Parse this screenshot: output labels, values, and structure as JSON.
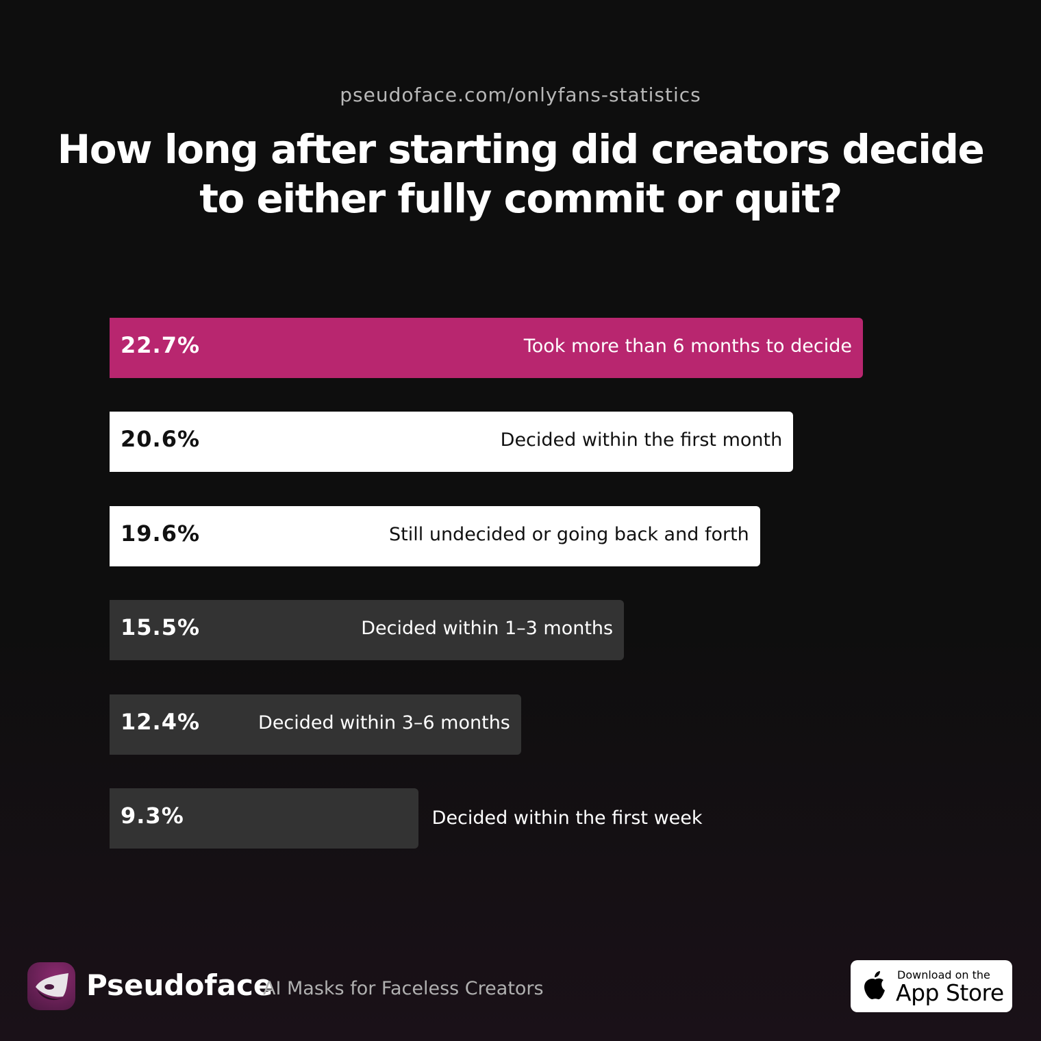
{
  "header": {
    "source": "pseudoface.com/onlyfans-statistics"
  },
  "chart_data": {
    "type": "bar",
    "orientation": "horizontal",
    "title": "How long after starting did creators decide to either fully commit or quit?",
    "categories": [
      "Took more than 6 months to decide",
      "Decided within the first month",
      "Still undecided or going back and forth",
      "Decided within 1–3 months",
      "Decided within 3–6 months",
      "Decided within the first week"
    ],
    "values": [
      22.7,
      20.6,
      19.6,
      15.5,
      12.4,
      9.3
    ],
    "value_labels": [
      "22.7%",
      "20.6%",
      "19.6%",
      "15.5%",
      "12.4%",
      "9.3%"
    ],
    "bar_colors": [
      "#b8266f",
      "#ffffff",
      "#ffffff",
      "#333333",
      "#333333",
      "#333333"
    ],
    "text_colors": [
      "#ffffff",
      "#111111",
      "#111111",
      "#ffffff",
      "#ffffff",
      "#ffffff"
    ],
    "grid": false
  },
  "footer": {
    "brand": "Pseudoface",
    "tagline": "AI Masks for Faceless Creators",
    "logo_icon": "mask-icon",
    "badge": {
      "small": "Download on the",
      "big": "App Store",
      "icon": "apple-icon"
    }
  }
}
